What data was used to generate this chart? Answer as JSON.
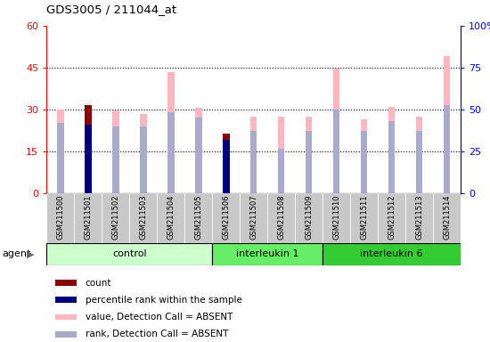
{
  "title": "GDS3005 / 211044_at",
  "samples": [
    "GSM211500",
    "GSM211501",
    "GSM211502",
    "GSM211503",
    "GSM211504",
    "GSM211505",
    "GSM211506",
    "GSM211507",
    "GSM211508",
    "GSM211509",
    "GSM211510",
    "GSM211511",
    "GSM211512",
    "GSM211513",
    "GSM211514"
  ],
  "pink_values": [
    30.0,
    31.5,
    29.5,
    28.5,
    43.5,
    30.5,
    21.5,
    27.5,
    27.5,
    27.5,
    44.5,
    26.5,
    31.0,
    27.5,
    49.0
  ],
  "blue_rank_values_pct": [
    42.0,
    43.0,
    40.0,
    40.0,
    48.5,
    45.0,
    33.0,
    37.0,
    26.5,
    37.0,
    50.0,
    37.0,
    43.0,
    37.0,
    52.5
  ],
  "dark_red_count": [
    0,
    31.5,
    0,
    0,
    0,
    0,
    21.5,
    0,
    0,
    0,
    0,
    0,
    0,
    0,
    0
  ],
  "dark_blue_rank_pct": [
    0,
    41.0,
    0,
    0,
    0,
    0,
    32.0,
    0,
    0,
    0,
    0,
    0,
    0,
    0,
    0
  ],
  "left_ylim": [
    0,
    60
  ],
  "right_ylim": [
    0,
    100
  ],
  "left_yticks": [
    0,
    15,
    30,
    45,
    60
  ],
  "right_yticks": [
    0,
    25,
    50,
    75,
    100
  ],
  "left_yticklabels": [
    "0",
    "15",
    "30",
    "45",
    "60"
  ],
  "right_yticklabels": [
    "0",
    "25",
    "50",
    "75",
    "100%"
  ],
  "colors": {
    "dark_red": "#8B0000",
    "dark_blue": "#000080",
    "pink": "#FFB6C1",
    "light_blue": "#AAAACC",
    "bg_xticklabels": "#C8C8C8"
  },
  "bar_width": 0.25,
  "groups": [
    {
      "name": "control",
      "start": 0,
      "end": 6,
      "color": "#CCFFCC"
    },
    {
      "name": "interleukin 1",
      "start": 6,
      "end": 10,
      "color": "#66EE66"
    },
    {
      "name": "interleukin 6",
      "start": 10,
      "end": 15,
      "color": "#33CC33"
    }
  ],
  "agent_label": "agent"
}
